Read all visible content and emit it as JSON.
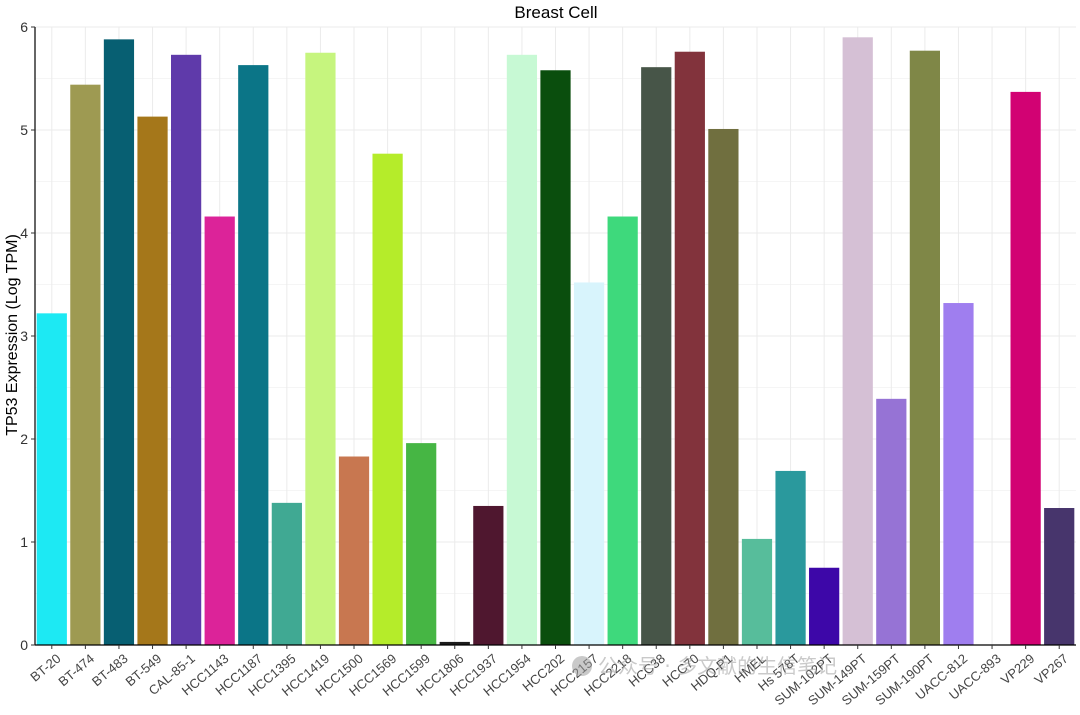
{
  "chart_data": {
    "type": "bar",
    "title": "Breast Cell",
    "xlabel": "",
    "ylabel": "TP53 Expression (Log TPM)",
    "ylim": [
      0,
      6
    ],
    "yticks": [
      0,
      1,
      2,
      3,
      4,
      5,
      6
    ],
    "grid": true,
    "categories": [
      "BT-20",
      "BT-474",
      "BT-483",
      "BT-549",
      "CAL-85-1",
      "HCC1143",
      "HCC1187",
      "HCC1395",
      "HCC1419",
      "HCC1500",
      "HCC1569",
      "HCC1599",
      "HCC1806",
      "HCC1937",
      "HCC1954",
      "HCC202",
      "HCC2157",
      "HCC2218",
      "HCC38",
      "HCC70",
      "HDQ-P1",
      "HMEL",
      "Hs 578T",
      "SUM-102PT",
      "SUM-149PT",
      "SUM-159PT",
      "SUM-190PT",
      "UACC-812",
      "UACC-893",
      "VP229",
      "VP267"
    ],
    "values": [
      3.22,
      5.44,
      5.88,
      5.13,
      5.73,
      4.16,
      5.63,
      1.38,
      5.75,
      1.83,
      4.77,
      1.96,
      0.03,
      1.35,
      5.73,
      5.58,
      3.52,
      4.16,
      5.61,
      5.76,
      5.01,
      1.03,
      1.69,
      0.75,
      5.9,
      2.39,
      5.77,
      3.32,
      0.0,
      5.37,
      1.33
    ],
    "colors": [
      "#1de9f3",
      "#9e9a52",
      "#075f72",
      "#a5771a",
      "#5f3aaa",
      "#dc2399",
      "#0b7587",
      "#40a993",
      "#c6f57e",
      "#c87750",
      "#b5ec2a",
      "#46b644",
      "#1c1c1c",
      "#4f172f",
      "#c7f9d4",
      "#0a4e0d",
      "#d8f4fc",
      "#3ed97c",
      "#475548",
      "#82333c",
      "#706f3f",
      "#57bd9b",
      "#2a999d",
      "#3d07a8",
      "#d5c0d5",
      "#9673d5",
      "#7f8747",
      "#9f7eef",
      "#9f7eef",
      "#d20273",
      "#47356c"
    ]
  },
  "watermark": "公众号 · 多文献的生信笔记"
}
